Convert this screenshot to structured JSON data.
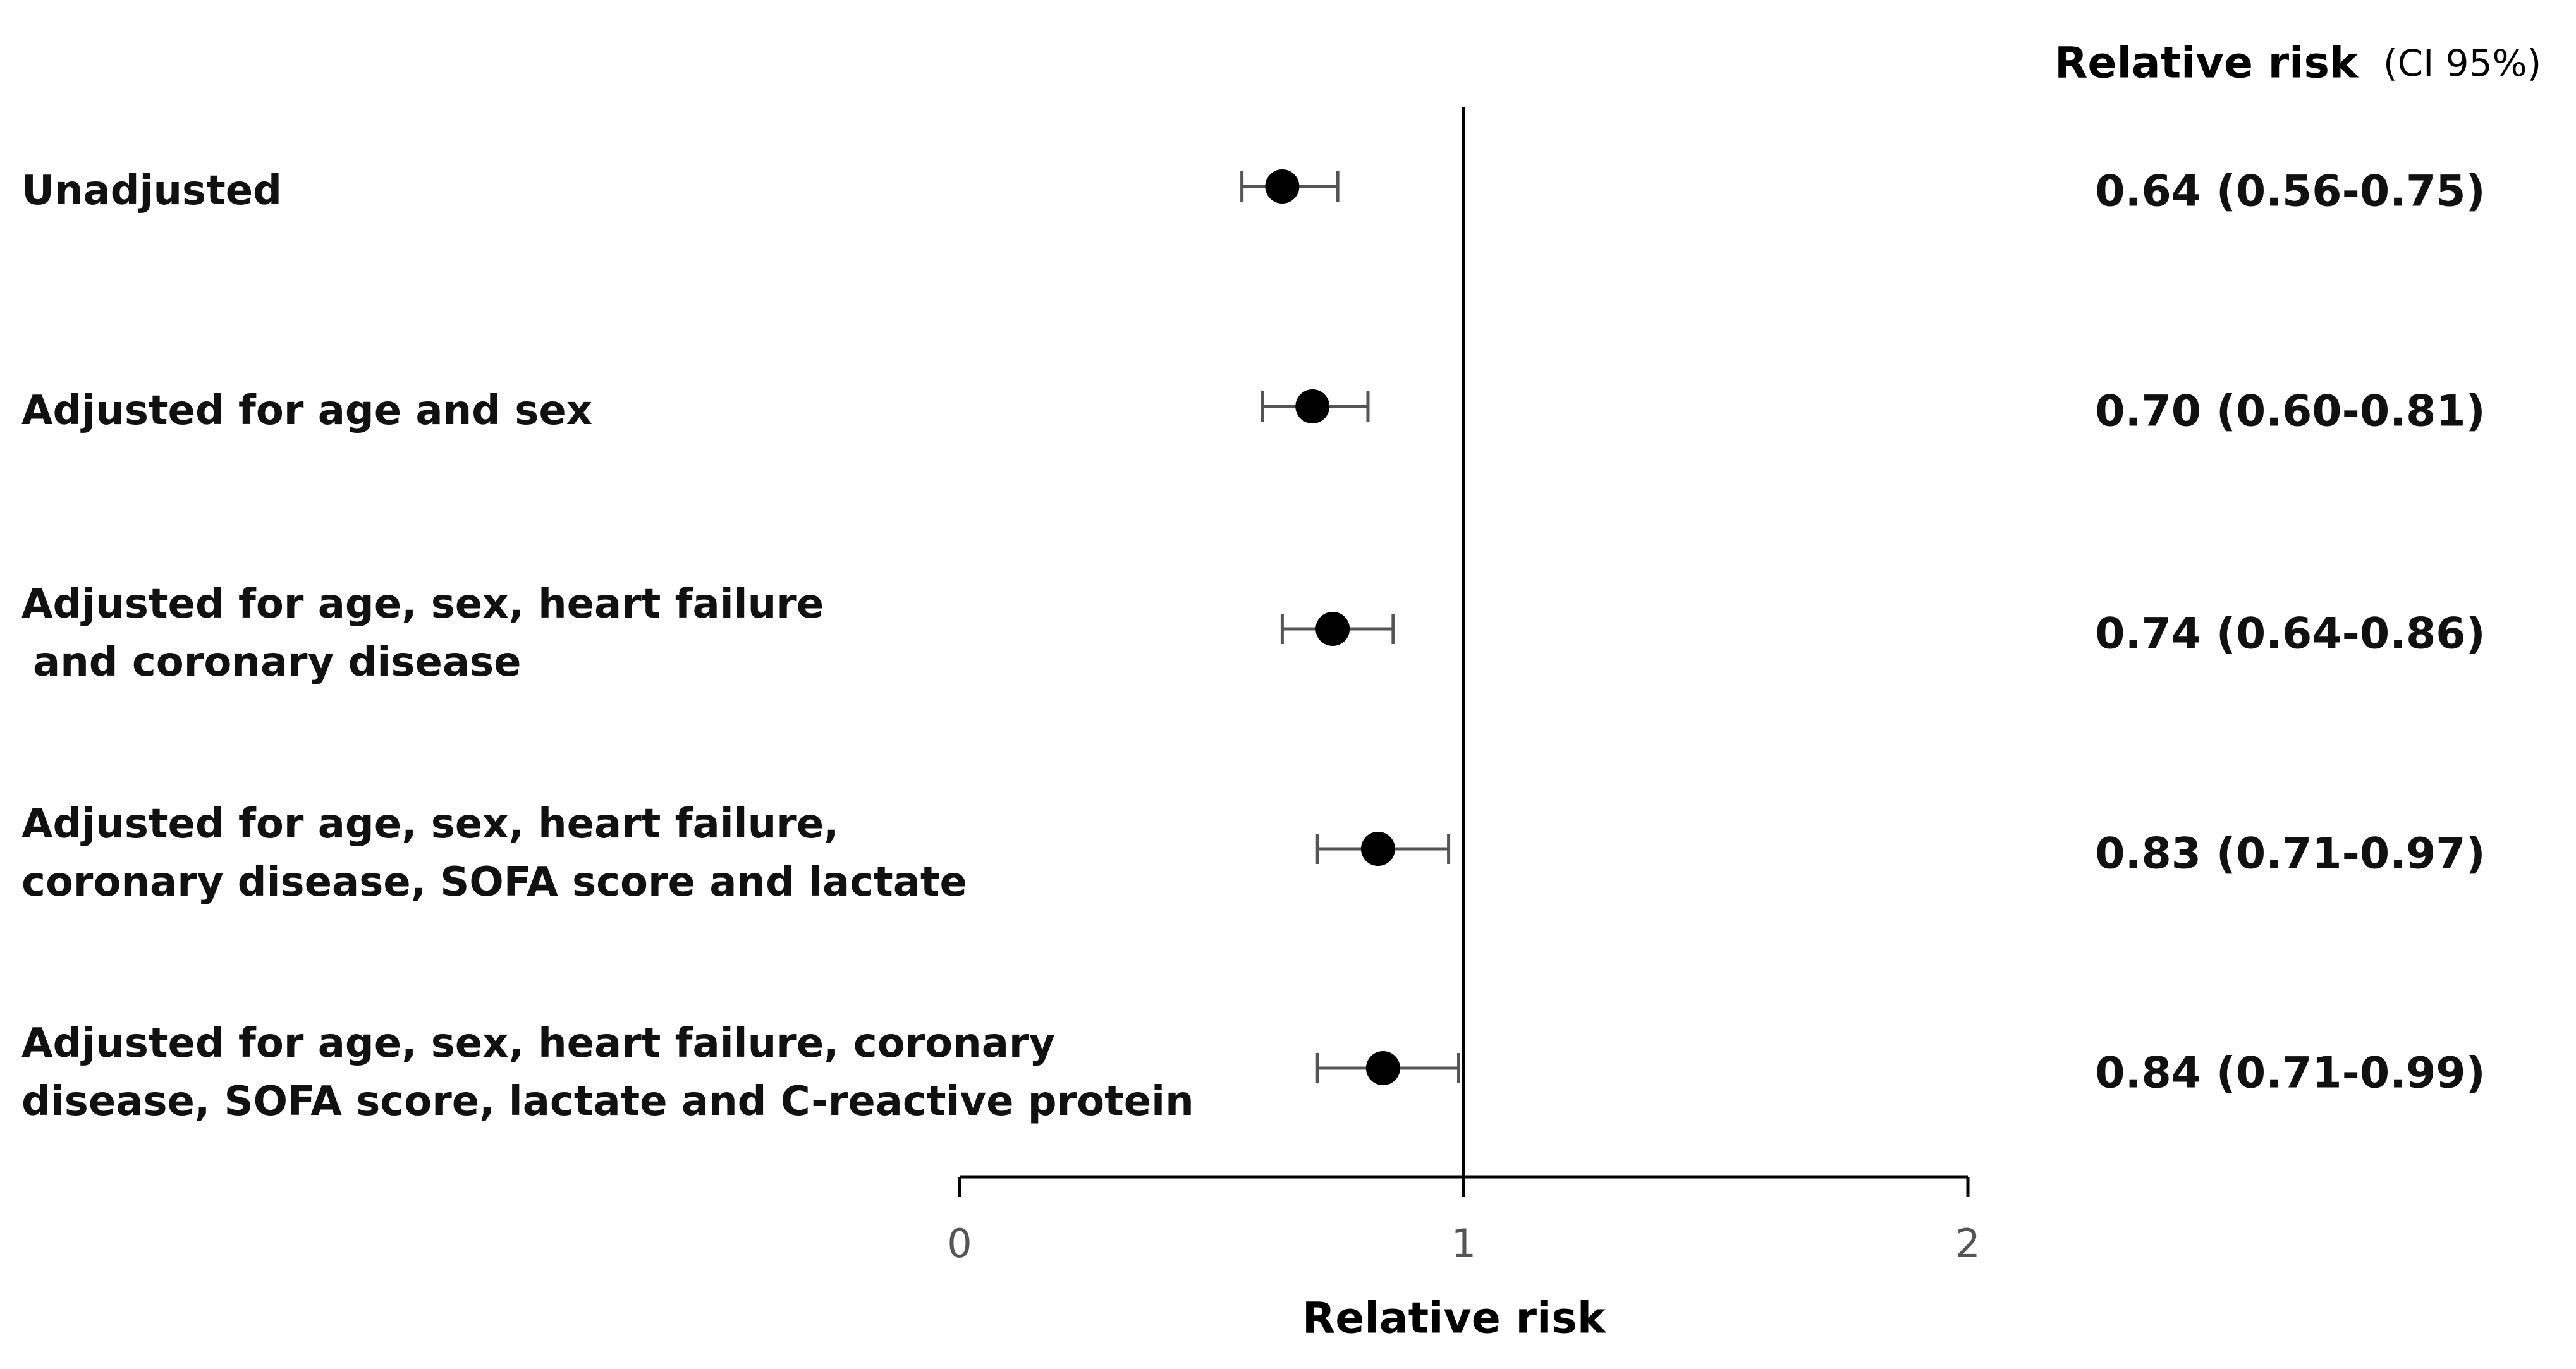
{
  "chart_data": {
    "type": "forest",
    "header": "Relative risk",
    "header_note": "(CI 95%)",
    "x_label": "Relative risk",
    "categories": [
      [
        "Unadjusted"
      ],
      [
        "Adjusted for age and sex"
      ],
      [
        "Adjusted for age, sex, heart failure",
        "and coronary disease"
      ],
      [
        "Adjusted for age, sex, heart failure,",
        "coronary disease, SOFA score and lactate"
      ],
      [
        "Adjusted for age, sex, heart failure, coronary",
        "disease, SOFA score, lactate and C-reactive protein"
      ]
    ],
    "values": [
      0.64,
      0.7,
      0.74,
      0.83,
      0.84
    ],
    "ci_low": [
      0.56,
      0.6,
      0.64,
      0.71,
      0.71
    ],
    "ci_high": [
      0.75,
      0.81,
      0.86,
      0.97,
      0.99
    ],
    "value_labels": [
      "0.64 (0.56-0.75)",
      "0.70 (0.60-0.81)",
      "0.74 (0.64-0.86)",
      "0.83 (0.71-0.97)",
      "0.84 (0.71-0.99)"
    ],
    "reference_line": 1,
    "xlim": [
      0,
      2
    ],
    "xticks": [
      0,
      1,
      2
    ],
    "color": "#000000",
    "errorbar_color": "#555555"
  }
}
